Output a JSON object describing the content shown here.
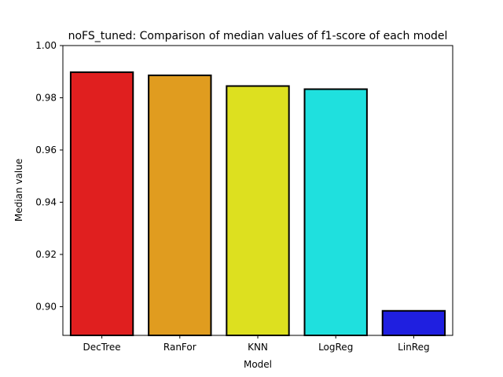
{
  "chart_data": {
    "type": "bar",
    "title": "noFS_tuned: Comparison of median values of f1-score of each model",
    "xlabel": "Model",
    "ylabel": "Median value",
    "categories": [
      "DecTree",
      "RanFor",
      "KNN",
      "LogReg",
      "LinReg"
    ],
    "values": [
      0.9898,
      0.9886,
      0.9845,
      0.9833,
      0.8984
    ],
    "colors": [
      "#e01f1f",
      "#e09c1f",
      "#dde01f",
      "#1fe0de",
      "#1f1fe0"
    ],
    "ylim": [
      0.889,
      1.0
    ],
    "yticks": [
      0.9,
      0.92,
      0.94,
      0.96,
      0.98,
      1.0
    ],
    "ytick_labels": [
      "0.90",
      "0.92",
      "0.94",
      "0.96",
      "0.98",
      "1.00"
    ],
    "grid": false,
    "legend": "none"
  }
}
